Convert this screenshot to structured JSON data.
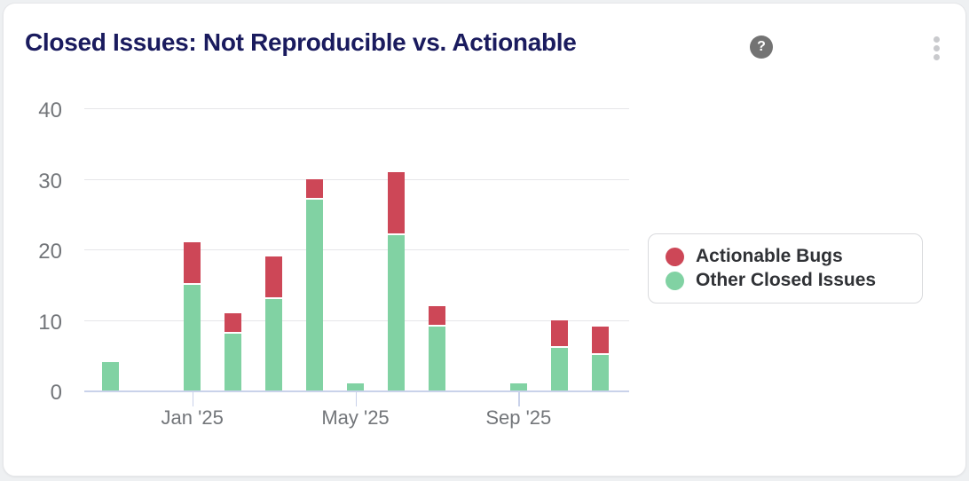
{
  "header": {
    "title": "Closed Issues: Not Reproducible vs. Actionable",
    "help_glyph": "?"
  },
  "legend": {
    "items": [
      {
        "label": "Actionable Bugs",
        "color": "#cd4757"
      },
      {
        "label": "Other Closed Issues",
        "color": "#81d2a3"
      }
    ]
  },
  "chart_data": {
    "type": "bar",
    "stacked": true,
    "title": "Closed Issues: Not Reproducible vs. Actionable",
    "categories": [
      "Nov '24",
      "Dec '24",
      "Jan '25",
      "Feb '25",
      "Mar '25",
      "Apr '25",
      "May '25",
      "Jun '25",
      "Jul '25",
      "Aug '25",
      "Sep '25",
      "Oct '25",
      "Nov '25"
    ],
    "series": [
      {
        "name": "Other Closed Issues",
        "color": "#81d2a3",
        "values": [
          4,
          0,
          15,
          8,
          13,
          27,
          1,
          22,
          9,
          0,
          1,
          6,
          5
        ]
      },
      {
        "name": "Actionable Bugs",
        "color": "#cd4757",
        "values": [
          0,
          0,
          6,
          3,
          6,
          3,
          0,
          9,
          3,
          0,
          0,
          4,
          4
        ]
      }
    ],
    "stack_order_bottom_to_top": [
      "Other Closed Issues",
      "Actionable Bugs"
    ],
    "totals": [
      4,
      0,
      21,
      11,
      19,
      30,
      1,
      31,
      12,
      0,
      1,
      10,
      9
    ],
    "ylim": [
      0,
      40
    ],
    "y_ticks": [
      0,
      10,
      20,
      30,
      40
    ],
    "x_tick_labels": [
      "Jan '25",
      "May '25",
      "Sep '25"
    ],
    "x_tick_category_indices": [
      2,
      6,
      10
    ],
    "grid": true,
    "legend_position": "right-middle"
  },
  "colors": {
    "title": "#1a1b5e",
    "axis_labels": "#73767a",
    "gridline": "#e6e6e9",
    "axis_line": "#c9d2ea",
    "legend_border": "#d9dadd",
    "legend_text": "#303236",
    "help_icon_bg": "#737373",
    "kebab_dots": "#c9cacd",
    "card_bg": "#ffffff",
    "page_bg": "#eef0f2"
  }
}
